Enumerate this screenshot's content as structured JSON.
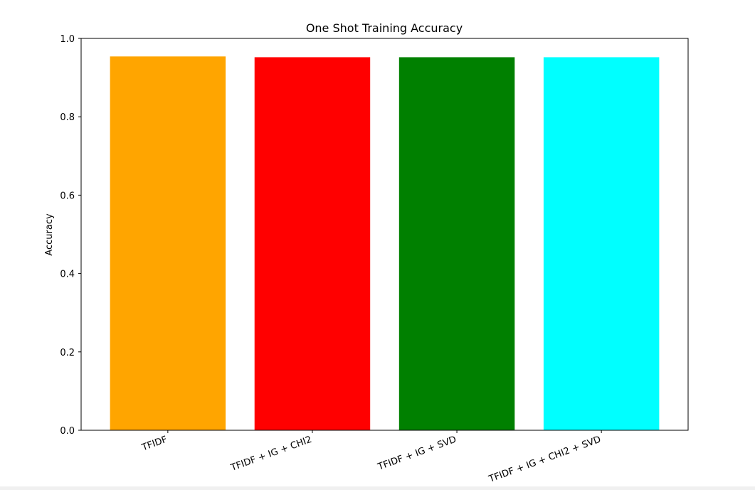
{
  "chart_data": {
    "type": "bar",
    "title": "One Shot Training Accuracy",
    "xlabel": "",
    "ylabel": "Accuracy",
    "ylim": [
      0,
      1.0
    ],
    "yticks": [
      0.0,
      0.2,
      0.4,
      0.6,
      0.8,
      1.0
    ],
    "ytick_labels": [
      "0.0",
      "0.2",
      "0.4",
      "0.6",
      "0.8",
      "1.0"
    ],
    "categories": [
      "TFIDF",
      "TFIDF + IG + CHI2",
      "TFIDF + IG + SVD",
      "TFIDF + IG + CHI2 + SVD"
    ],
    "values": [
      0.954,
      0.952,
      0.952,
      0.952
    ],
    "colors": [
      "#ffa500",
      "#ff0000",
      "#008000",
      "#00ffff"
    ],
    "grid": false,
    "legend": "none"
  }
}
